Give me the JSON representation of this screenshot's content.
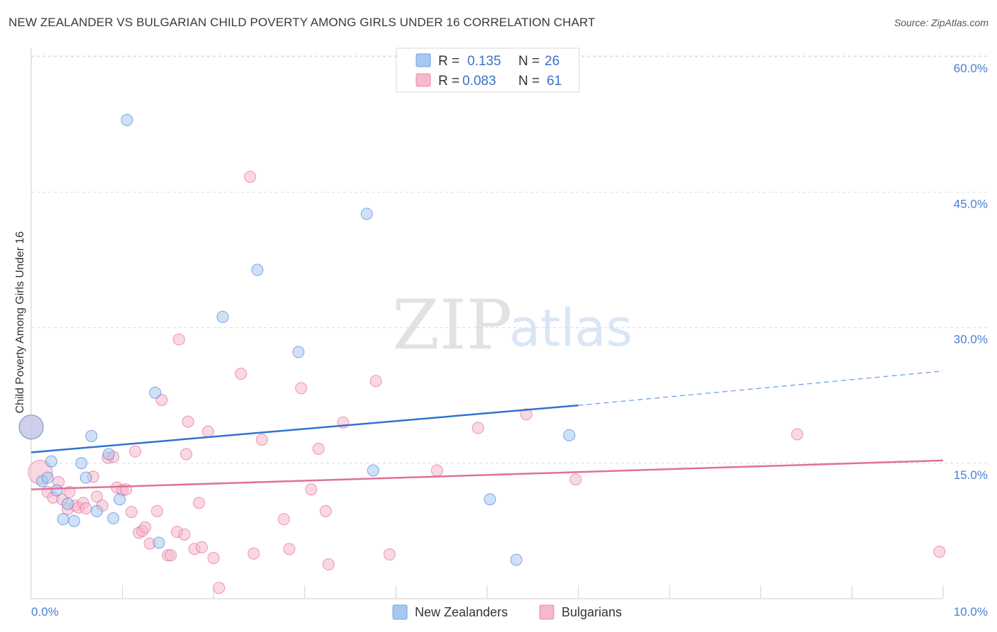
{
  "title": "NEW ZEALANDER VS BULGARIAN CHILD POVERTY AMONG GIRLS UNDER 16 CORRELATION CHART",
  "source": "Source: ZipAtlas.com",
  "watermark": {
    "zip": "ZIP",
    "atlas": "atlas"
  },
  "legend": {
    "rows": [
      {
        "r_label": "R =",
        "r_value": "0.135",
        "n_label": "N =",
        "n_value": "26",
        "color": "#a9c8f0"
      },
      {
        "r_label": "R =",
        "r_value": "0.083",
        "n_label": "N =",
        "n_value": "61",
        "color": "#f6b8cb"
      }
    ]
  },
  "bottom_legend": [
    {
      "label": "New Zealanders",
      "color": "#a9c8f0"
    },
    {
      "label": "Bulgarians",
      "color": "#f6b8cb"
    }
  ],
  "chart_data": {
    "type": "scatter",
    "title": "NEW ZEALANDER VS BULGARIAN CHILD POVERTY AMONG GIRLS UNDER 16 CORRELATION CHART",
    "xlabel": "",
    "ylabel": "Child Poverty Among Girls Under 16",
    "xlim": [
      0,
      10
    ],
    "ylim": [
      0,
      60
    ],
    "x_tick_labels": [
      "0.0%",
      "10.0%"
    ],
    "y_ticks": [
      15,
      30,
      45,
      60
    ],
    "y_tick_labels": [
      "15.0%",
      "30.0%",
      "45.0%",
      "60.0%"
    ],
    "grid": true,
    "legend_position": "top-center",
    "series": [
      {
        "name": "New Zealanders",
        "color": "#4a86d8",
        "fill": "#a9c8f0",
        "trend": {
          "x": [
            0,
            6.0
          ],
          "y": [
            16.2,
            21.4
          ],
          "dashed_to": [
            10.0,
            25.2
          ]
        },
        "points": [
          {
            "x": 0.0,
            "y": 19.0,
            "big": true
          },
          {
            "x": 0.12,
            "y": 13.0
          },
          {
            "x": 0.18,
            "y": 13.4
          },
          {
            "x": 0.22,
            "y": 15.2
          },
          {
            "x": 0.28,
            "y": 12.0
          },
          {
            "x": 0.35,
            "y": 8.8
          },
          {
            "x": 0.4,
            "y": 10.5
          },
          {
            "x": 0.47,
            "y": 8.6
          },
          {
            "x": 0.55,
            "y": 15.0
          },
          {
            "x": 0.6,
            "y": 13.4
          },
          {
            "x": 0.66,
            "y": 18.0
          },
          {
            "x": 0.72,
            "y": 9.7
          },
          {
            "x": 0.85,
            "y": 16.0
          },
          {
            "x": 0.9,
            "y": 8.9
          },
          {
            "x": 0.97,
            "y": 11.0
          },
          {
            "x": 1.05,
            "y": 53.0
          },
          {
            "x": 1.36,
            "y": 22.8
          },
          {
            "x": 1.4,
            "y": 6.2
          },
          {
            "x": 2.1,
            "y": 31.2
          },
          {
            "x": 2.48,
            "y": 36.4
          },
          {
            "x": 2.93,
            "y": 27.3
          },
          {
            "x": 3.68,
            "y": 42.6
          },
          {
            "x": 3.75,
            "y": 14.2
          },
          {
            "x": 5.03,
            "y": 11.0
          },
          {
            "x": 5.32,
            "y": 4.3
          },
          {
            "x": 5.9,
            "y": 18.1
          }
        ]
      },
      {
        "name": "Bulgarians",
        "color": "#e0709a",
        "fill": "#f6b8cb",
        "trend": {
          "x": [
            0,
            10.0
          ],
          "y": [
            12.1,
            15.3
          ]
        },
        "points": [
          {
            "x": 0.0,
            "y": 19.0,
            "big": true
          },
          {
            "x": 0.1,
            "y": 14.0,
            "big": true
          },
          {
            "x": 0.18,
            "y": 11.8
          },
          {
            "x": 0.24,
            "y": 11.2
          },
          {
            "x": 0.3,
            "y": 12.9
          },
          {
            "x": 0.34,
            "y": 11.0
          },
          {
            "x": 0.4,
            "y": 9.9
          },
          {
            "x": 0.42,
            "y": 11.8
          },
          {
            "x": 0.48,
            "y": 10.3
          },
          {
            "x": 0.52,
            "y": 10.1
          },
          {
            "x": 0.57,
            "y": 10.6
          },
          {
            "x": 0.6,
            "y": 10.0
          },
          {
            "x": 0.68,
            "y": 13.5
          },
          {
            "x": 0.72,
            "y": 11.3
          },
          {
            "x": 0.78,
            "y": 10.3
          },
          {
            "x": 0.84,
            "y": 15.6
          },
          {
            "x": 0.9,
            "y": 15.7
          },
          {
            "x": 0.94,
            "y": 12.3
          },
          {
            "x": 1.0,
            "y": 12.0
          },
          {
            "x": 1.04,
            "y": 12.1
          },
          {
            "x": 1.1,
            "y": 9.6
          },
          {
            "x": 1.14,
            "y": 16.3
          },
          {
            "x": 1.18,
            "y": 7.3
          },
          {
            "x": 1.22,
            "y": 7.5
          },
          {
            "x": 1.25,
            "y": 7.9
          },
          {
            "x": 1.3,
            "y": 6.1
          },
          {
            "x": 1.38,
            "y": 9.7
          },
          {
            "x": 1.43,
            "y": 22.0
          },
          {
            "x": 1.5,
            "y": 4.8
          },
          {
            "x": 1.53,
            "y": 4.8
          },
          {
            "x": 1.6,
            "y": 7.4
          },
          {
            "x": 1.68,
            "y": 7.1
          },
          {
            "x": 1.72,
            "y": 19.6
          },
          {
            "x": 1.79,
            "y": 5.5
          },
          {
            "x": 1.84,
            "y": 10.6
          },
          {
            "x": 1.87,
            "y": 5.7
          },
          {
            "x": 1.94,
            "y": 18.5
          },
          {
            "x": 2.0,
            "y": 4.5
          },
          {
            "x": 2.06,
            "y": 1.2
          },
          {
            "x": 2.3,
            "y": 24.9
          },
          {
            "x": 2.4,
            "y": 46.7
          },
          {
            "x": 2.44,
            "y": 5.0
          },
          {
            "x": 2.53,
            "y": 17.6
          },
          {
            "x": 2.77,
            "y": 8.8
          },
          {
            "x": 2.83,
            "y": 5.5
          },
          {
            "x": 2.96,
            "y": 23.3
          },
          {
            "x": 3.07,
            "y": 12.1
          },
          {
            "x": 3.15,
            "y": 16.6
          },
          {
            "x": 3.23,
            "y": 9.7
          },
          {
            "x": 3.26,
            "y": 3.8
          },
          {
            "x": 3.42,
            "y": 19.5
          },
          {
            "x": 3.78,
            "y": 24.1
          },
          {
            "x": 3.93,
            "y": 4.9
          },
          {
            "x": 4.45,
            "y": 14.2
          },
          {
            "x": 4.9,
            "y": 18.9
          },
          {
            "x": 5.43,
            "y": 20.4
          },
          {
            "x": 5.97,
            "y": 13.2
          },
          {
            "x": 1.62,
            "y": 28.7
          },
          {
            "x": 8.4,
            "y": 18.2
          },
          {
            "x": 9.96,
            "y": 5.2
          },
          {
            "x": 1.7,
            "y": 16.0
          }
        ]
      }
    ]
  }
}
